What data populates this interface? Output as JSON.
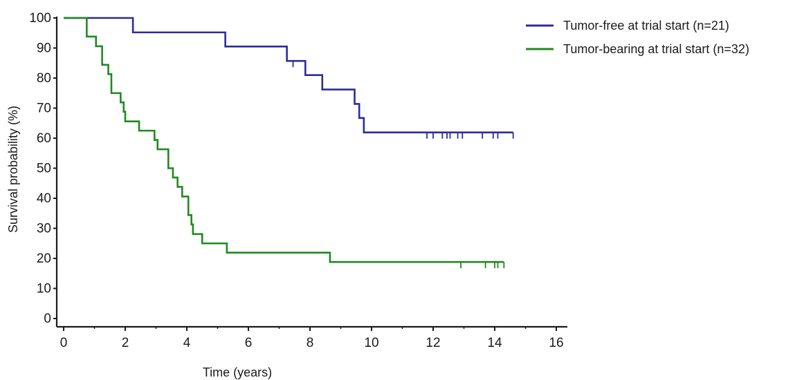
{
  "chart_data": {
    "type": "line",
    "subtype": "kaplan-meier step plot",
    "title": "",
    "xlabel": "Time (years)",
    "ylabel": "Survival probability (%)",
    "xlim": [
      0,
      16
    ],
    "ylim": [
      0,
      100
    ],
    "xticks": [
      0,
      2,
      4,
      6,
      8,
      10,
      12,
      14,
      16
    ],
    "yticks": [
      0,
      10,
      20,
      30,
      40,
      50,
      60,
      70,
      80,
      90,
      100
    ],
    "grid": false,
    "legend_position": "top-right",
    "series": [
      {
        "name": "Tumor-free at trial start (n=21)",
        "color": "#2b2b9c",
        "x": [
          0,
          2.25,
          5.25,
          7.25,
          7.85,
          8.4,
          9.45,
          9.6,
          9.75,
          14.6
        ],
        "y": [
          100,
          95.2,
          90.5,
          85.7,
          81.0,
          76.2,
          71.4,
          66.7,
          61.9,
          61.9
        ],
        "censored_x": [
          7.45,
          11.8,
          12.0,
          12.3,
          12.45,
          12.55,
          12.8,
          12.95,
          13.6,
          13.95,
          14.1,
          14.6
        ],
        "censored_y": [
          85.7,
          61.9,
          61.9,
          61.9,
          61.9,
          61.9,
          61.9,
          61.9,
          61.9,
          61.9,
          61.9,
          61.9
        ]
      },
      {
        "name": "Tumor-bearing at trial start (n=32)",
        "color": "#1f8a1f",
        "x": [
          0,
          0.75,
          1.05,
          1.25,
          1.45,
          1.55,
          1.85,
          1.95,
          2.0,
          2.45,
          2.95,
          3.05,
          3.4,
          3.55,
          3.7,
          3.85,
          4.05,
          4.15,
          4.2,
          4.5,
          5.3,
          8.65,
          14.3
        ],
        "y": [
          100,
          93.8,
          90.6,
          84.4,
          81.3,
          75.0,
          71.9,
          68.8,
          65.6,
          62.5,
          59.4,
          56.3,
          50.0,
          46.9,
          43.8,
          40.6,
          34.4,
          31.3,
          28.1,
          25.0,
          21.9,
          18.8,
          18.8
        ],
        "censored_x": [
          12.9,
          13.7,
          14.0,
          14.1,
          14.3
        ],
        "censored_y": [
          18.8,
          18.8,
          18.8,
          18.8,
          18.8
        ]
      }
    ]
  }
}
